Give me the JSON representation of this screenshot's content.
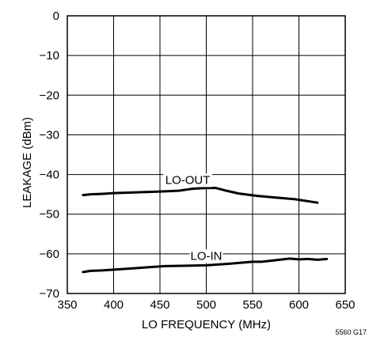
{
  "chart_data": {
    "type": "line",
    "title": "",
    "xlabel": "LO FREQUENCY (MHz)",
    "ylabel": "LEAKAGE (dBm)",
    "xlim": [
      350,
      650
    ],
    "ylim": [
      -70,
      0
    ],
    "x_ticks": [
      350,
      400,
      450,
      500,
      550,
      600,
      650
    ],
    "y_ticks": [
      0,
      -10,
      -20,
      -30,
      -40,
      -50,
      -60,
      -70
    ],
    "x_tick_labels": [
      "350",
      "400",
      "450",
      "500",
      "550",
      "600",
      "650"
    ],
    "y_tick_labels": [
      "0",
      "−10",
      "−20",
      "−30",
      "−40",
      "−50",
      "−60",
      "−70"
    ],
    "grid": true,
    "series": [
      {
        "name": "LO-OUT",
        "x": [
          367,
          375,
          387,
          400,
          425,
          450,
          470,
          485,
          500,
          510,
          520,
          535,
          555,
          575,
          595,
          620
        ],
        "y": [
          -45.2,
          -45.0,
          -44.9,
          -44.7,
          -44.5,
          -44.3,
          -44.1,
          -43.6,
          -43.4,
          -43.4,
          -44.0,
          -44.8,
          -45.4,
          -45.8,
          -46.2,
          -47.1
        ]
      },
      {
        "name": "LO-IN",
        "x": [
          367,
          375,
          387,
          400,
          425,
          455,
          480,
          500,
          525,
          550,
          560,
          575,
          590,
          600,
          610,
          620,
          630
        ],
        "y": [
          -64.6,
          -64.3,
          -64.2,
          -64.0,
          -63.6,
          -63.1,
          -63.0,
          -62.9,
          -62.5,
          -62.0,
          -62.0,
          -61.6,
          -61.2,
          -61.4,
          -61.3,
          -61.5,
          -61.3
        ]
      }
    ]
  },
  "figure_code": "5560 G17"
}
